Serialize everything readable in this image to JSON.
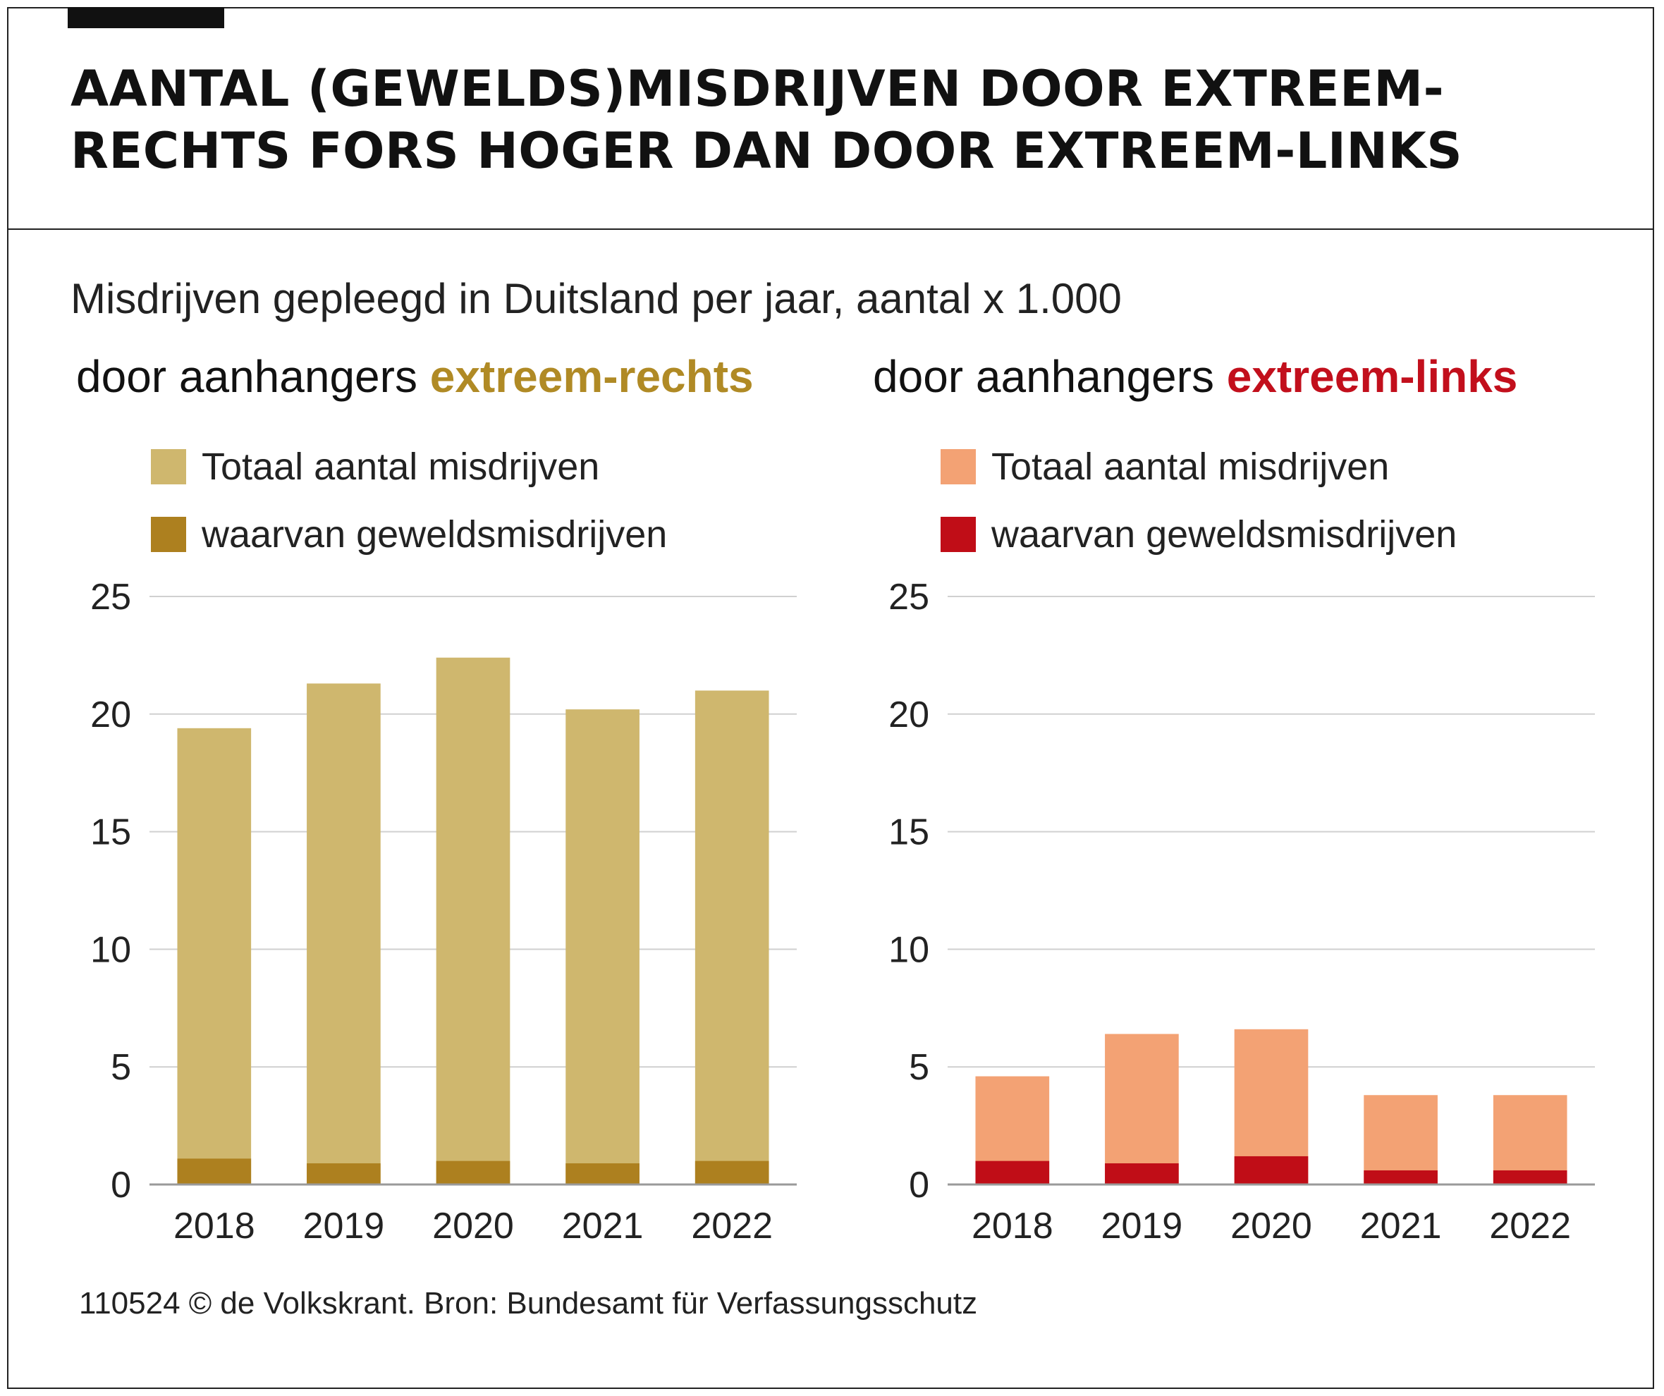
{
  "title": "AANTAL (GEWELDS)MISDRIJVEN DOOR EXTREEM-RECHTS FORS HOGER DAN DOOR EXTREEM-LINKS",
  "subtitle": "Misdrijven gepleegd in Duitsland per jaar, aantal x 1.000",
  "footer": "110524 © de Volkskrant. Bron: Bundesamt für Verfassungsschutz",
  "colors": {
    "right_total": "#cfb76e",
    "right_violent": "#ad801f",
    "left_total": "#f3a274",
    "left_violent": "#c00d17",
    "gridline": "#d0d0d0",
    "axis": "#9a9a9a"
  },
  "chart_data": [
    {
      "type": "bar",
      "stacking": "overlay",
      "group_prefix": "door aanhangers ",
      "group_highlight": "extreem-rechts",
      "group_color": "#b08a25",
      "categories": [
        "2018",
        "2019",
        "2020",
        "2021",
        "2022"
      ],
      "series": [
        {
          "name": "Totaal aantal misdrijven",
          "color": "#cfb76e",
          "values": [
            19.4,
            21.3,
            22.4,
            20.2,
            21.0
          ]
        },
        {
          "name": "waarvan geweldsmisdrijven",
          "color": "#ad801f",
          "values": [
            1.1,
            0.9,
            1.0,
            0.9,
            1.0
          ]
        }
      ],
      "ylim": [
        0,
        25
      ],
      "yticks": [
        0,
        5,
        10,
        15,
        20,
        25
      ],
      "grid": true,
      "legend": "top-left"
    },
    {
      "type": "bar",
      "stacking": "overlay",
      "group_prefix": "door aanhangers ",
      "group_highlight": "extreem-links",
      "group_color": "#c20f1c",
      "categories": [
        "2018",
        "2019",
        "2020",
        "2021",
        "2022"
      ],
      "series": [
        {
          "name": "Totaal aantal misdrijven",
          "color": "#f3a274",
          "values": [
            4.6,
            6.4,
            6.6,
            3.8,
            3.8
          ]
        },
        {
          "name": "waarvan geweldsmisdrijven",
          "color": "#c00d17",
          "values": [
            1.0,
            0.9,
            1.2,
            0.6,
            0.6
          ]
        }
      ],
      "ylim": [
        0,
        25
      ],
      "yticks": [
        0,
        5,
        10,
        15,
        20,
        25
      ],
      "grid": true,
      "legend": "top-left"
    }
  ]
}
